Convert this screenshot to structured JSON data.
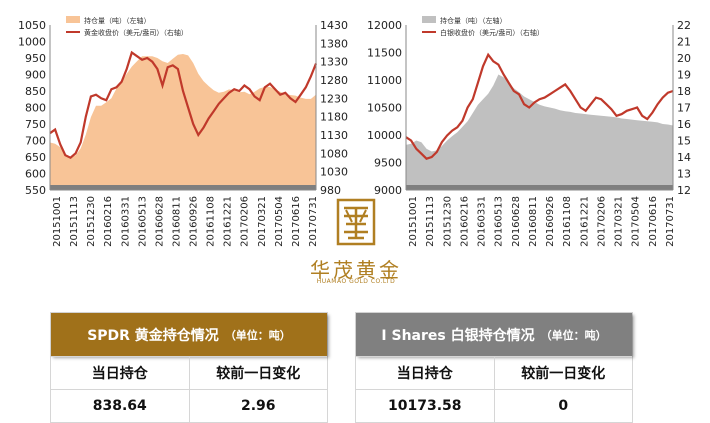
{
  "chart_data": [
    {
      "type": "area+line",
      "legend": [
        "持仓量（吨）（左轴）",
        "黄金收盘价（美元/盎司）（右轴）"
      ],
      "colors": {
        "area": "#f8c497",
        "line": "#c0392b",
        "base": "#7f7f7f"
      },
      "ylim_left": [
        550,
        1050
      ],
      "yticks_left": [
        "550",
        "600",
        "650",
        "700",
        "750",
        "800",
        "850",
        "900",
        "950",
        "1000",
        "1050"
      ],
      "ylim_right": [
        980,
        1430
      ],
      "yticks_right": [
        "980",
        "1030",
        "1080",
        "1130",
        "1180",
        "1230",
        "1280",
        "1330",
        "1380",
        "1430"
      ],
      "xticks": [
        "20151001",
        "20151113",
        "20151230",
        "20160216",
        "20160331",
        "20160513",
        "20160628",
        "20160811",
        "20160926",
        "20161108",
        "20161221",
        "20170206",
        "20170321",
        "20170504",
        "20170616",
        "20170731"
      ],
      "series": [
        {
          "name": "持仓量（吨）（左轴）",
          "axis": "left",
          "values": [
            694,
            690,
            680,
            660,
            648,
            655,
            676,
            718,
            771,
            805,
            805,
            816,
            828,
            858,
            877,
            902,
            924,
            940,
            955,
            955,
            955,
            950,
            940,
            935,
            948,
            960,
            962,
            958,
            935,
            902,
            880,
            865,
            852,
            845,
            848,
            855,
            852,
            846,
            848,
            840,
            848,
            858,
            862,
            862,
            855,
            848,
            840,
            838,
            836,
            830,
            826,
            826,
            839
          ]
        },
        {
          "name": "黄金收盘价（美元/盎司）（右轴）",
          "axis": "right",
          "values": [
            1135,
            1145,
            1105,
            1075,
            1068,
            1080,
            1110,
            1180,
            1235,
            1240,
            1230,
            1225,
            1255,
            1260,
            1275,
            1310,
            1355,
            1345,
            1335,
            1340,
            1330,
            1310,
            1265,
            1315,
            1320,
            1310,
            1250,
            1205,
            1160,
            1130,
            1150,
            1175,
            1195,
            1215,
            1230,
            1245,
            1255,
            1250,
            1265,
            1255,
            1235,
            1225,
            1260,
            1270,
            1255,
            1240,
            1245,
            1230,
            1220,
            1240,
            1260,
            1290,
            1325
          ]
        }
      ]
    },
    {
      "type": "area+line",
      "legend": [
        "持仓量（吨）（左轴）",
        "白银收盘价（美元/盎司）（右轴）"
      ],
      "colors": {
        "area": "#c0c0c0",
        "line": "#c0392b",
        "base": "#7f7f7f"
      },
      "ylim_left": [
        9000,
        12000
      ],
      "yticks_left": [
        "9000",
        "9500",
        "10000",
        "10500",
        "11000",
        "11500",
        "12000"
      ],
      "ylim_right": [
        12,
        22
      ],
      "yticks_right": [
        "12",
        "13",
        "14",
        "15",
        "16",
        "17",
        "18",
        "19",
        "20",
        "21",
        "22"
      ],
      "xticks": [
        "20151001",
        "20151113",
        "20151230",
        "20160216",
        "20160331",
        "20160513",
        "20160628",
        "20160811",
        "20160926",
        "20161108",
        "20161221",
        "20170206",
        "20170321",
        "20170504",
        "20170616",
        "20170731"
      ],
      "series": [
        {
          "name": "持仓量（吨）（左轴）",
          "axis": "left",
          "values": [
            9820,
            9840,
            9900,
            9870,
            9750,
            9700,
            9720,
            9800,
            9900,
            9980,
            10050,
            10150,
            10250,
            10400,
            10550,
            10650,
            10750,
            10900,
            11100,
            11050,
            10950,
            10850,
            10780,
            10700,
            10650,
            10600,
            10550,
            10520,
            10500,
            10480,
            10450,
            10430,
            10420,
            10400,
            10390,
            10380,
            10370,
            10360,
            10350,
            10340,
            10330,
            10320,
            10300,
            10290,
            10280,
            10270,
            10260,
            10250,
            10240,
            10230,
            10200,
            10190,
            10173.58
          ]
        },
        {
          "name": "白银收盘价（美元/盎司）（右轴）",
          "axis": "right",
          "values": [
            15.2,
            15.0,
            14.5,
            14.2,
            13.9,
            14.0,
            14.3,
            14.9,
            15.3,
            15.6,
            15.8,
            16.2,
            17.0,
            17.5,
            18.5,
            19.5,
            20.2,
            19.8,
            19.6,
            19.0,
            18.5,
            18.0,
            17.8,
            17.2,
            17.0,
            17.3,
            17.5,
            17.6,
            17.8,
            18.0,
            18.2,
            18.4,
            18.0,
            17.5,
            17.0,
            16.8,
            17.2,
            17.6,
            17.5,
            17.2,
            16.9,
            16.5,
            16.6,
            16.8,
            16.9,
            17.0,
            16.5,
            16.3,
            16.7,
            17.2,
            17.6,
            17.9,
            18.0
          ]
        }
      ]
    }
  ],
  "logo": {
    "name": "华茂黄金",
    "sub": "HUAMAO GOLD CO.LTD"
  },
  "gold_panel": {
    "title": "SPDR 黄金持仓情况",
    "unit": "（单位：吨）",
    "col_today": "当日持仓",
    "col_change": "较前一日变化",
    "today_value": "838.64",
    "change_value": "2.96",
    "header_color": "#a0711a"
  },
  "silver_panel": {
    "title": "I Shares 白银持仓情况",
    "unit": "（单位：吨）",
    "col_today": "当日持仓",
    "col_change": "较前一日变化",
    "today_value": "10173.58",
    "change_value": "0",
    "header_color": "#808080"
  }
}
